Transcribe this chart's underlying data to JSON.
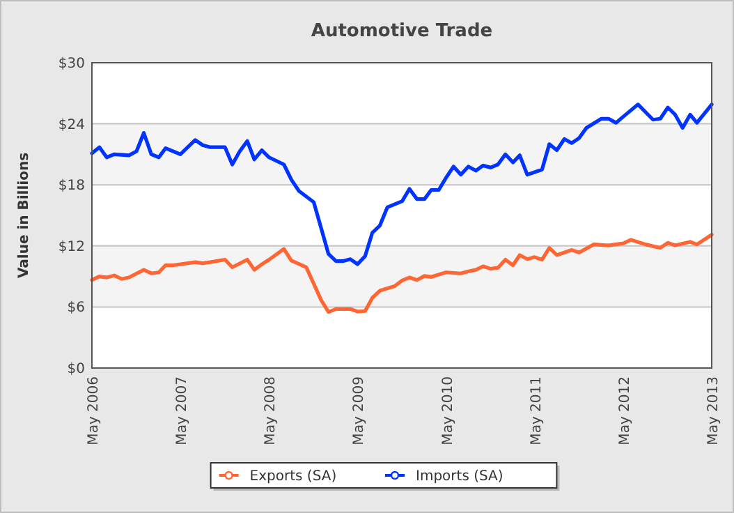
{
  "chart_data": {
    "type": "line",
    "title": "Automotive Trade",
    "ylabel": "Value in Billions",
    "xlim": [
      "2006-05",
      "2013-05"
    ],
    "xticks": [
      {
        "value": "2006-05",
        "label": "May 2006"
      },
      {
        "value": "2007-05",
        "label": "May 2007"
      },
      {
        "value": "2008-05",
        "label": "May 2008"
      },
      {
        "value": "2009-05",
        "label": "May 2009"
      },
      {
        "value": "2010-05",
        "label": "May 2010"
      },
      {
        "value": "2011-05",
        "label": "May 2011"
      },
      {
        "value": "2012-05",
        "label": "May 2012"
      },
      {
        "value": "2013-05",
        "label": "May 2013"
      }
    ],
    "ylim": [
      0,
      30
    ],
    "yticks": [
      {
        "value": 0,
        "label": "$0"
      },
      {
        "value": 6,
        "label": "$6"
      },
      {
        "value": 12,
        "label": "$12"
      },
      {
        "value": 18,
        "label": "$18"
      },
      {
        "value": 24,
        "label": "$24"
      },
      {
        "value": 30,
        "label": "$30"
      }
    ],
    "grid": "y",
    "legend": "bottom",
    "line_style": "solid",
    "series": [
      {
        "name": "Exports (SA)",
        "color": "#ff6633",
        "x": [
          "2006-05",
          "2006-06",
          "2006-07",
          "2006-08",
          "2006-09",
          "2006-10",
          "2006-12",
          "2007-01",
          "2007-02",
          "2007-03",
          "2007-04",
          "2007-07",
          "2007-08",
          "2007-09",
          "2007-11",
          "2007-12",
          "2008-02",
          "2008-03",
          "2008-04",
          "2008-05",
          "2008-07",
          "2008-08",
          "2008-10",
          "2008-11",
          "2008-12",
          "2009-01",
          "2009-02",
          "2009-04",
          "2009-05",
          "2009-06",
          "2009-07",
          "2009-08",
          "2009-10",
          "2009-11",
          "2009-12",
          "2010-01",
          "2010-02",
          "2010-03",
          "2010-05",
          "2010-07",
          "2010-08",
          "2010-09",
          "2010-10",
          "2010-11",
          "2010-12",
          "2011-01",
          "2011-02",
          "2011-03",
          "2011-04",
          "2011-05",
          "2011-06",
          "2011-07",
          "2011-08",
          "2011-09",
          "2011-10",
          "2011-11",
          "2012-01",
          "2012-03",
          "2012-05",
          "2012-06",
          "2012-08",
          "2012-10",
          "2012-11",
          "2012-12",
          "2013-02",
          "2013-03",
          "2013-05"
        ],
        "values": [
          8.65,
          9.0,
          8.9,
          9.1,
          8.75,
          8.9,
          9.65,
          9.3,
          9.4,
          10.1,
          10.1,
          10.4,
          10.3,
          10.4,
          10.65,
          9.9,
          10.65,
          9.65,
          10.2,
          10.65,
          11.7,
          10.55,
          9.9,
          8.3,
          6.7,
          5.5,
          5.8,
          5.8,
          5.55,
          5.6,
          6.9,
          7.6,
          8.05,
          8.6,
          8.9,
          8.65,
          9.05,
          8.95,
          9.4,
          9.3,
          9.5,
          9.65,
          10.0,
          9.75,
          9.85,
          10.65,
          10.1,
          11.1,
          10.7,
          10.9,
          10.65,
          11.8,
          11.1,
          11.35,
          11.6,
          11.35,
          12.15,
          12.05,
          12.25,
          12.6,
          12.15,
          11.8,
          12.3,
          12.05,
          12.4,
          12.15,
          13.1
        ]
      },
      {
        "name": "Imports (SA)",
        "color": "#0033ff",
        "x": [
          "2006-05",
          "2006-06",
          "2006-07",
          "2006-08",
          "2006-10",
          "2006-11",
          "2006-12",
          "2007-01",
          "2007-02",
          "2007-03",
          "2007-05",
          "2007-07",
          "2007-08",
          "2007-09",
          "2007-11",
          "2007-12",
          "2008-01",
          "2008-02",
          "2008-03",
          "2008-04",
          "2008-05",
          "2008-07",
          "2008-08",
          "2008-09",
          "2008-11",
          "2008-12",
          "2009-01",
          "2009-02",
          "2009-03",
          "2009-04",
          "2009-05",
          "2009-06",
          "2009-07",
          "2009-08",
          "2009-09",
          "2009-11",
          "2009-12",
          "2010-01",
          "2010-02",
          "2010-03",
          "2010-04",
          "2010-05",
          "2010-06",
          "2010-07",
          "2010-08",
          "2010-09",
          "2010-10",
          "2010-11",
          "2010-12",
          "2011-01",
          "2011-02",
          "2011-03",
          "2011-04",
          "2011-06",
          "2011-07",
          "2011-08",
          "2011-09",
          "2011-10",
          "2011-11",
          "2011-12",
          "2012-02",
          "2012-03",
          "2012-04",
          "2012-05",
          "2012-07",
          "2012-09",
          "2012-10",
          "2012-11",
          "2012-12",
          "2013-01",
          "2013-02",
          "2013-03",
          "2013-05"
        ],
        "values": [
          21.1,
          21.7,
          20.7,
          21.0,
          20.9,
          21.3,
          23.1,
          21.0,
          20.7,
          21.6,
          21.0,
          22.4,
          21.9,
          21.7,
          21.7,
          20.0,
          21.3,
          22.3,
          20.5,
          21.4,
          20.7,
          20.0,
          18.5,
          17.4,
          16.3,
          13.8,
          11.2,
          10.5,
          10.5,
          10.7,
          10.2,
          11.0,
          13.3,
          14.0,
          15.8,
          16.4,
          17.6,
          16.6,
          16.6,
          17.5,
          17.5,
          18.7,
          19.8,
          19.0,
          19.8,
          19.4,
          19.9,
          19.7,
          20.0,
          21.0,
          20.2,
          20.9,
          19.0,
          19.5,
          22.0,
          21.4,
          22.5,
          22.1,
          22.6,
          23.6,
          24.5,
          24.5,
          24.1,
          24.7,
          25.9,
          24.4,
          24.5,
          25.6,
          24.9,
          23.6,
          24.9,
          24.1,
          25.9
        ]
      }
    ]
  }
}
